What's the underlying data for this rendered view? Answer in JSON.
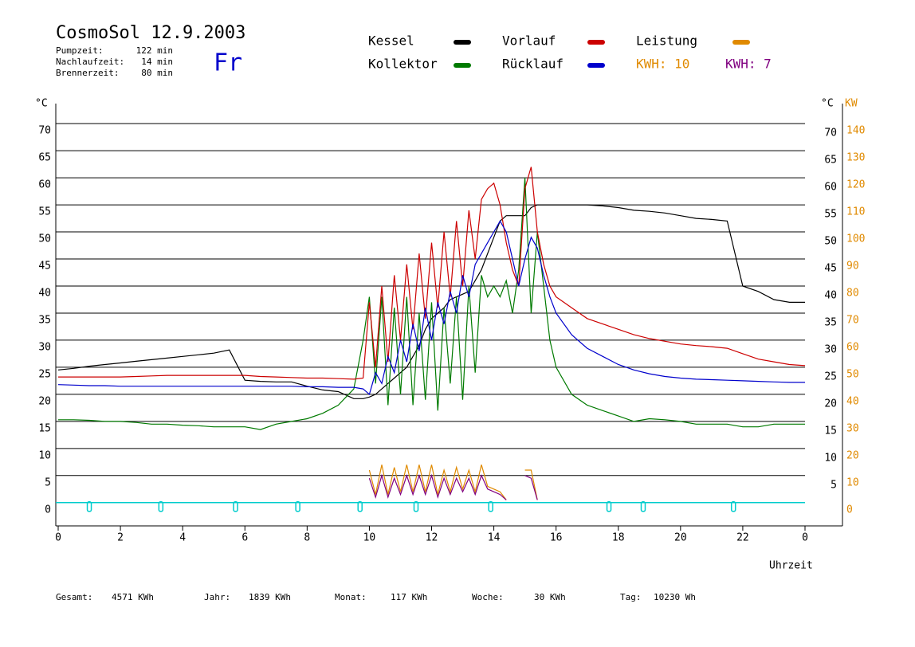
{
  "chart_data": {
    "type": "line",
    "title": "CosmoSol 12.9.2003",
    "info": [
      {
        "label": "Pumpzeit:",
        "value": "122 min"
      },
      {
        "label": "Nachlaufzeit:",
        "value": "14 min"
      },
      {
        "label": "Brennerzeit:",
        "value": "80 min"
      }
    ],
    "weekday": "Fr",
    "y_label": "°C",
    "y2_label_c": "°C",
    "y2_label": "KW",
    "x_label": "Uhrzeit",
    "kwh_labels": [
      {
        "text": "KWH: 10",
        "color": "#e08a00"
      },
      {
        "text": "KWH: 7",
        "color": "#800080"
      }
    ],
    "x": [
      0,
      0.5,
      1,
      1.5,
      2,
      2.5,
      3,
      3.5,
      4,
      4.5,
      5,
      5.5,
      6,
      6.5,
      7,
      7.5,
      8,
      8.5,
      9,
      9.5,
      9.8,
      10,
      10.2,
      10.4,
      10.6,
      10.8,
      11,
      11.2,
      11.4,
      11.6,
      11.8,
      12,
      12.2,
      12.4,
      12.6,
      12.8,
      13,
      13.2,
      13.4,
      13.6,
      13.8,
      14,
      14.2,
      14.4,
      14.6,
      14.8,
      15,
      15.2,
      15.4,
      15.6,
      15.8,
      16,
      16.5,
      17,
      17.5,
      18,
      18.5,
      19,
      19.5,
      20,
      20.5,
      21,
      21.5,
      22,
      22.5,
      23,
      23.5,
      24
    ],
    "series": [
      {
        "name": "Kessel",
        "color": "#000000",
        "values": [
          24.5,
          24.8,
          25.2,
          25.5,
          25.8,
          26.1,
          26.4,
          26.7,
          27,
          27.3,
          27.6,
          28.2,
          22.6,
          22.4,
          22.3,
          22.3,
          21.5,
          20.8,
          20.5,
          19.2,
          19.2,
          19.5,
          20,
          21,
          22,
          23,
          24,
          25,
          27,
          29,
          32,
          34,
          35,
          36,
          37.5,
          38,
          38.5,
          39,
          41,
          43,
          46,
          49,
          52,
          53,
          53,
          53,
          53,
          54.5,
          55,
          55,
          55,
          55,
          55,
          55,
          54.8,
          54.5,
          54,
          53.8,
          53.5,
          53,
          52.5,
          52.3,
          52,
          40,
          39,
          37.5,
          37,
          37
        ]
      },
      {
        "name": "Kollektor",
        "color": "#007a00",
        "values": [
          15.3,
          15.3,
          15.2,
          15,
          15,
          14.8,
          14.5,
          14.5,
          14.3,
          14.2,
          14,
          14,
          14,
          13.5,
          14.5,
          15,
          15.5,
          16.5,
          18,
          21,
          30,
          38,
          22,
          38,
          18,
          36,
          20,
          38,
          18,
          35,
          19,
          37,
          17,
          36,
          22,
          38,
          19,
          40,
          24,
          42,
          38,
          40,
          38,
          41,
          35,
          43,
          60,
          35,
          50,
          40,
          30,
          25,
          20,
          18,
          17,
          16,
          15,
          15.5,
          15.3,
          15,
          14.5,
          14.5,
          14.5,
          14,
          14,
          14.5,
          14.5,
          14.5
        ]
      },
      {
        "name": "Vorlauf",
        "color": "#cc0000",
        "values": [
          23.2,
          23.2,
          23.2,
          23.2,
          23.2,
          23.3,
          23.4,
          23.5,
          23.5,
          23.5,
          23.5,
          23.5,
          23.5,
          23.3,
          23.2,
          23.1,
          23,
          23,
          22.9,
          22.8,
          23,
          37,
          25,
          40,
          26,
          42,
          30,
          44,
          32,
          46,
          34,
          48,
          36,
          50,
          38,
          52,
          40,
          54,
          45,
          56,
          58,
          59,
          55,
          48,
          43,
          40,
          58,
          62,
          50,
          44,
          40,
          38,
          36,
          34,
          33,
          32,
          31,
          30.3,
          29.8,
          29.3,
          29,
          28.8,
          28.5,
          27.5,
          26.5,
          26,
          25.5,
          25.3
        ]
      },
      {
        "name": "Rücklauf",
        "color": "#0000cc",
        "values": [
          21.8,
          21.7,
          21.6,
          21.6,
          21.5,
          21.5,
          21.5,
          21.5,
          21.5,
          21.5,
          21.5,
          21.5,
          21.5,
          21.5,
          21.5,
          21.5,
          21.4,
          21.4,
          21.3,
          21.3,
          21,
          20,
          24,
          22,
          27,
          24,
          30,
          26,
          33,
          28,
          36,
          30,
          37,
          33,
          39,
          35,
          42,
          38,
          44,
          46,
          48,
          50,
          52,
          50,
          45,
          40,
          45,
          49,
          47,
          42,
          38,
          35,
          31,
          28.5,
          27,
          25.5,
          24.5,
          23.8,
          23.3,
          23,
          22.8,
          22.7,
          22.6,
          22.5,
          22.4,
          22.3,
          22.2,
          22.2
        ]
      },
      {
        "name": "Leistung",
        "color": "#e08a00",
        "axis": "y2",
        "values": [
          null,
          null,
          null,
          null,
          null,
          null,
          null,
          null,
          null,
          null,
          null,
          null,
          null,
          null,
          null,
          null,
          null,
          null,
          null,
          null,
          null,
          12,
          3,
          14,
          3,
          13,
          4,
          14,
          4,
          14,
          4,
          14,
          3,
          12,
          4,
          13,
          5,
          12,
          4,
          14,
          6,
          5,
          4,
          1,
          null,
          null,
          12,
          12,
          1,
          null,
          null,
          null,
          null,
          null,
          null,
          null,
          null,
          null,
          null,
          null,
          null,
          null,
          null,
          null,
          null,
          null,
          null,
          null
        ]
      },
      {
        "color": "#800080",
        "axis": "y2",
        "values": [
          null,
          null,
          null,
          null,
          null,
          null,
          null,
          null,
          null,
          null,
          null,
          null,
          null,
          null,
          null,
          null,
          null,
          null,
          null,
          null,
          null,
          9,
          2,
          10,
          2,
          9,
          3,
          10,
          3,
          10,
          3,
          10,
          2,
          9,
          3,
          9,
          4,
          9,
          3,
          10,
          5,
          4,
          3,
          1,
          null,
          null,
          10,
          9,
          1,
          null,
          null,
          null,
          null,
          null,
          null,
          null,
          null,
          null,
          null,
          null,
          null,
          null,
          null,
          null,
          null,
          null,
          null,
          null
        ]
      }
    ],
    "markers": {
      "color": "#00cccc",
      "x": [
        1.0,
        3.3,
        5.7,
        7.7,
        9.7,
        11.5,
        13.9,
        17.7,
        18.8,
        21.7
      ]
    },
    "xlim": [
      0,
      24
    ],
    "xticks": [
      0,
      2,
      4,
      6,
      8,
      10,
      12,
      14,
      16,
      18,
      20,
      22,
      {
        "value": 24,
        "label": "0"
      }
    ],
    "ylim": [
      -4.3,
      73.7
    ],
    "yticks": [
      0,
      5,
      10,
      15,
      20,
      25,
      30,
      35,
      40,
      45,
      50,
      55,
      60,
      65,
      70
    ],
    "y2lim": [
      -8.6,
      147.4
    ],
    "y2ticks": [
      0,
      10,
      20,
      30,
      40,
      50,
      60,
      70,
      80,
      90,
      100,
      110,
      120,
      130,
      140
    ],
    "grid": true,
    "footer": [
      {
        "label": "Gesamt:",
        "value": "4571 KWh"
      },
      {
        "label": "Jahr:",
        "value": "1839 KWh"
      },
      {
        "label": "Monat:",
        "value": "117 KWh"
      },
      {
        "label": "Woche:",
        "value": "30 KWh"
      },
      {
        "label": "Tag:",
        "value": "10230 Wh"
      }
    ]
  }
}
